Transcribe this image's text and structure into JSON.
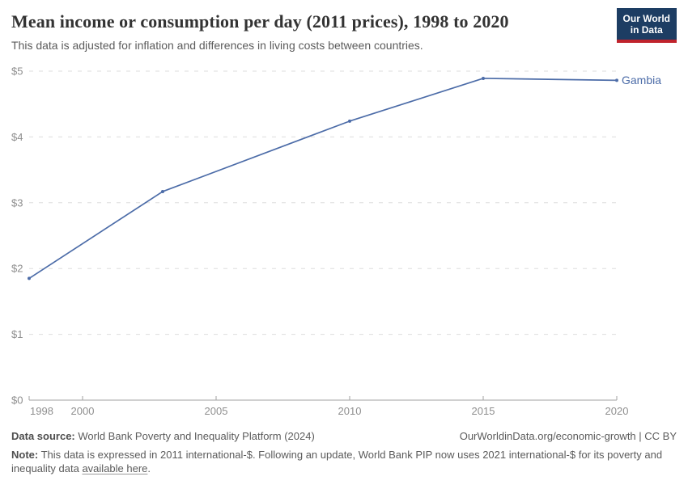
{
  "header": {
    "title": "Mean income or consumption per day (2011 prices), 1998 to 2020",
    "subtitle": "This data is adjusted for inflation and differences in living costs between countries."
  },
  "logo": {
    "line1": "Our World",
    "line2": "in Data",
    "bg_color": "#1D3D63",
    "bar_color": "#C0232C"
  },
  "chart_data": {
    "type": "line",
    "title": "Mean income or consumption per day (2011 prices), 1998 to 2020",
    "subtitle": "This data is adjusted for inflation and differences in living costs between countries.",
    "xlabel": "",
    "ylabel": "",
    "xlim": [
      1998,
      2020
    ],
    "ylim": [
      0,
      5
    ],
    "x_ticks": [
      1998,
      2000,
      2005,
      2010,
      2015,
      2020
    ],
    "y_ticks": [
      {
        "value": 0,
        "label": "$0"
      },
      {
        "value": 1,
        "label": "$1"
      },
      {
        "value": 2,
        "label": "$2"
      },
      {
        "value": 3,
        "label": "$3"
      },
      {
        "value": 4,
        "label": "$4"
      },
      {
        "value": 5,
        "label": "$5"
      }
    ],
    "grid": "horizontal-dashed",
    "legend_position": "end-of-line-label",
    "series": [
      {
        "name": "Gambia",
        "color": "#4C6CA8",
        "x": [
          1998,
          2003,
          2010,
          2015,
          2020
        ],
        "values": [
          1.85,
          3.17,
          4.24,
          4.89,
          4.86
        ]
      }
    ]
  },
  "colors": {
    "line": "#4C6CA8",
    "grid": "#DDDDDD",
    "axis": "#A1A1A1",
    "tick_label": "#8F8F8F",
    "title": "#333333",
    "subtitle": "#5B5B5B",
    "footer": "#5B5B5B"
  },
  "footer": {
    "source_label": "Data source:",
    "source_text": " World Bank Poverty and Inequality Platform (2024)",
    "rights": "OurWorldinData.org/economic-growth | CC BY",
    "note_label": "Note:",
    "note_text": " This data is expressed in 2011 international-$. Following an update, World Bank PIP now uses 2021 international-$ for its poverty and inequality data ",
    "note_link": "available here",
    "note_suffix": "."
  }
}
